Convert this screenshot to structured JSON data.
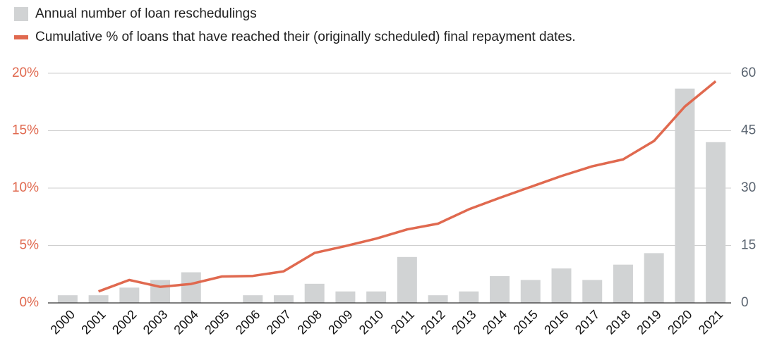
{
  "chart_data": {
    "type": "bar",
    "categories": [
      "2000",
      "2001",
      "2002",
      "2003",
      "2004",
      "2005",
      "2006",
      "2007",
      "2008",
      "2009",
      "2010",
      "2011",
      "2012",
      "2013",
      "2014",
      "2015",
      "2016",
      "2017",
      "2018",
      "2019",
      "2020",
      "2021"
    ],
    "series": [
      {
        "name": "Annual number of loan reschedulings",
        "type": "bar",
        "axis": "y2",
        "color": "#d1d3d4",
        "values": [
          2,
          2,
          4,
          6,
          8,
          0,
          2,
          2,
          5,
          3,
          3,
          12,
          2,
          3,
          7,
          6,
          9,
          6,
          10,
          13,
          56,
          42
        ]
      },
      {
        "name": "Cumulative % of loans that have reached their (originally scheduled) final repayment dates.",
        "type": "line",
        "axis": "y",
        "color": "#e0694f",
        "values": [
          null,
          1.0,
          2.0,
          1.4,
          1.65,
          2.3,
          2.35,
          2.75,
          4.35,
          4.95,
          5.6,
          6.4,
          6.9,
          8.15,
          9.15,
          10.1,
          11.05,
          11.9,
          12.5,
          14.1,
          17.1,
          19.3
        ]
      }
    ],
    "ylim": [
      0,
      20
    ],
    "yticks": [
      {
        "value": 0,
        "label": "0%"
      },
      {
        "value": 5,
        "label": "5%"
      },
      {
        "value": 10,
        "label": "10%"
      },
      {
        "value": 15,
        "label": "15%"
      },
      {
        "value": 20,
        "label": "20%"
      }
    ],
    "y2lim": [
      0,
      60
    ],
    "y2ticks": [
      0,
      15,
      30,
      45,
      60
    ],
    "grid": true,
    "legend": "top-left"
  }
}
